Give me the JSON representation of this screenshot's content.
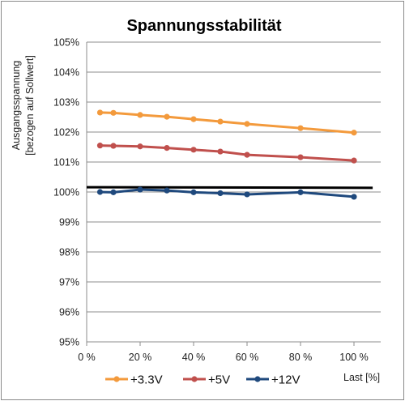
{
  "chart_data": {
    "type": "line",
    "title": "Spannungsstabilität",
    "ylabel_line1": "Ausgangsspannung",
    "ylabel_line2": "[bezogen auf Sollwert]",
    "xlabel": "Last [%]",
    "xlim": [
      0,
      110
    ],
    "ylim": [
      95,
      105
    ],
    "x_ticks": [
      0,
      20,
      40,
      60,
      80,
      100
    ],
    "x_tick_labels": [
      "0 %",
      "20 %",
      "40 %",
      "60 %",
      "80 %",
      "100 %"
    ],
    "y_ticks": [
      95,
      96,
      97,
      98,
      99,
      100,
      101,
      102,
      103,
      104,
      105
    ],
    "y_tick_labels": [
      "95%",
      "96%",
      "97%",
      "98%",
      "99%",
      "100%",
      "101%",
      "102%",
      "103%",
      "104%",
      "105%"
    ],
    "grid": true,
    "legend_position": "bottom",
    "x": [
      5,
      10,
      20,
      30,
      40,
      50,
      60,
      80,
      100
    ],
    "series": [
      {
        "name": "+3.3V",
        "color": "#f39a3c",
        "values": [
          102.65,
          102.64,
          102.57,
          102.51,
          102.43,
          102.35,
          102.27,
          102.13,
          101.98
        ]
      },
      {
        "name": "+5V",
        "color": "#c0504d",
        "values": [
          101.55,
          101.54,
          101.52,
          101.47,
          101.41,
          101.35,
          101.24,
          101.16,
          101.05
        ]
      },
      {
        "name": "+12V",
        "color": "#1f497d",
        "values": [
          100.0,
          99.99,
          100.08,
          100.05,
          99.99,
          99.96,
          99.92,
          99.99,
          99.84
        ]
      }
    ],
    "reference_line": {
      "x": [
        0,
        107
      ],
      "values": [
        100.16,
        100.14
      ],
      "color": "#000000"
    }
  }
}
